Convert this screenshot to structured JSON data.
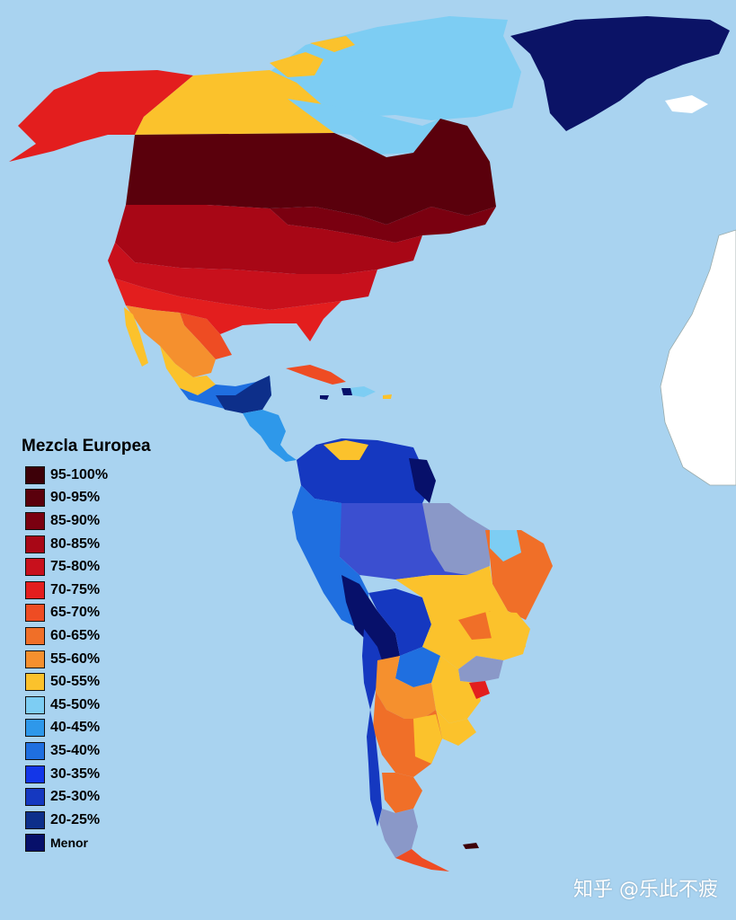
{
  "legend": {
    "title": "Mezcla Europea",
    "items": [
      {
        "label": "95-100%",
        "color": "#3d0008"
      },
      {
        "label": "90-95%",
        "color": "#5a000c"
      },
      {
        "label": "85-90%",
        "color": "#7a0010"
      },
      {
        "label": "80-85%",
        "color": "#a80716"
      },
      {
        "label": "75-80%",
        "color": "#c8101c"
      },
      {
        "label": "70-75%",
        "color": "#e31e1e"
      },
      {
        "label": "65-70%",
        "color": "#ee4c23"
      },
      {
        "label": "60-65%",
        "color": "#f06f28"
      },
      {
        "label": "55-60%",
        "color": "#f5902e"
      },
      {
        "label": "50-55%",
        "color": "#fbc22c"
      },
      {
        "label": "45-50%",
        "color": "#7dcdf3"
      },
      {
        "label": "40-45%",
        "color": "#2e98ea"
      },
      {
        "label": "35-40%",
        "color": "#1f6fe0"
      },
      {
        "label": "30-35%",
        "color": "#1336e8"
      },
      {
        "label": "25-30%",
        "color": "#1538c0"
      },
      {
        "label": "20-25%",
        "color": "#0d2f8a"
      },
      {
        "label": "Menor",
        "color": "#07106a"
      }
    ]
  },
  "colors": {
    "ocean": "#a9d3f0",
    "africa": "#ffffff",
    "other_europe": "#7a7a8a",
    "greenland": "#0b1366",
    "argentina_south": "#8a98c8"
  },
  "watermark": "知乎 @乐此不疲"
}
